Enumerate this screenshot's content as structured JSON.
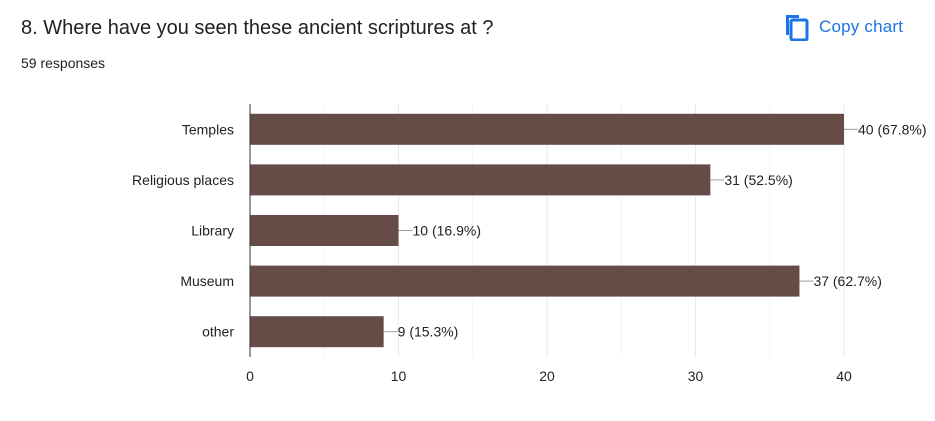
{
  "header": {
    "title": "8. Where have you seen these ancient scriptures at ?",
    "responses": "59 responses",
    "copy_label": "Copy chart",
    "copy_icon": "copy-icon"
  },
  "colors": {
    "bar": "#664c46",
    "accent": "#1a73e8",
    "grid": "#e8e8e8",
    "axis": "#333333"
  },
  "chart_data": {
    "type": "bar",
    "orientation": "horizontal",
    "categories": [
      "Temples",
      "Religious places",
      "Library",
      "Museum",
      "other"
    ],
    "values": [
      40,
      31,
      10,
      37,
      9
    ],
    "data_labels": [
      "40 (67.8%)",
      "31 (52.5%)",
      "10 (16.9%)",
      "37 (62.7%)",
      "9 (15.3%)"
    ],
    "xlim": [
      0,
      40
    ],
    "xticks": [
      0,
      10,
      20,
      30,
      40
    ],
    "grid": true,
    "title": "8. Where have you seen these ancient scriptures at ?",
    "xlabel": "",
    "ylabel": ""
  }
}
